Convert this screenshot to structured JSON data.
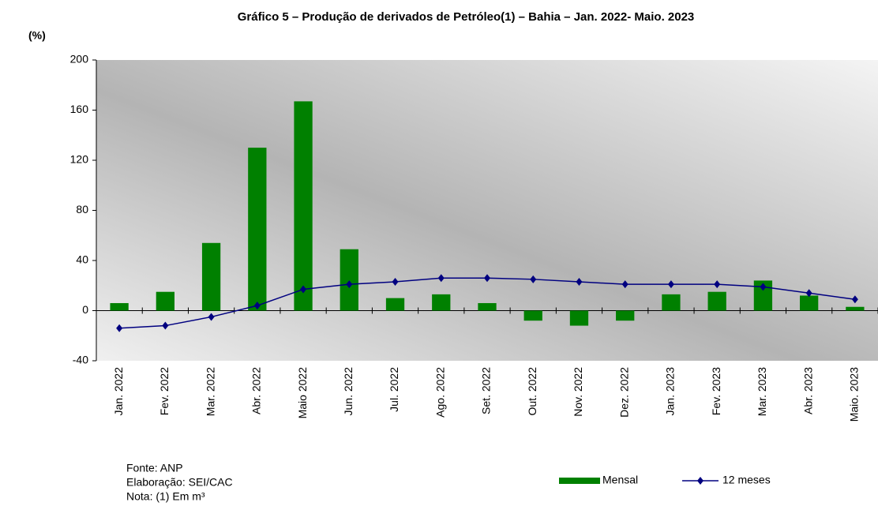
{
  "chart_data": {
    "type": "bar",
    "title": "Gráfico 5 – Produção de derivados de Petróleo(1) – Bahia – Jan. 2022- Maio. 2023",
    "y_label": "(%)",
    "notes": [
      "Fonte: ANP",
      "Elaboração: SEI/CAC",
      "Nota:  (1) Em m³"
    ],
    "categories": [
      "Jan. 2022",
      "Fev. 2022",
      "Mar. 2022",
      "Abr. 2022",
      "Maio 2022",
      "Jun. 2022",
      "Jul. 2022",
      "Ago. 2022",
      "Set. 2022",
      "Out. 2022",
      "Nov. 2022",
      "Dez. 2022",
      "Jan. 2023",
      "Fev. 2023",
      "Mar. 2023",
      "Abr. 2023",
      "Maio. 2023"
    ],
    "series": [
      {
        "name": "Mensal",
        "type": "bar",
        "color": "#008000",
        "values": [
          6,
          15,
          54,
          130,
          167,
          49,
          10,
          13,
          6,
          -8,
          -12,
          -8,
          13,
          15,
          24,
          12,
          3
        ]
      },
      {
        "name": "12 meses",
        "type": "line",
        "color": "#000080",
        "values": [
          -14,
          -12,
          -5,
          4,
          17,
          21,
          23,
          26,
          26,
          25,
          23,
          21,
          21,
          21,
          19,
          14,
          9
        ]
      }
    ],
    "ylim": [
      -40,
      200
    ],
    "yticks": [
      -40,
      0,
      40,
      80,
      120,
      160,
      200
    ]
  }
}
